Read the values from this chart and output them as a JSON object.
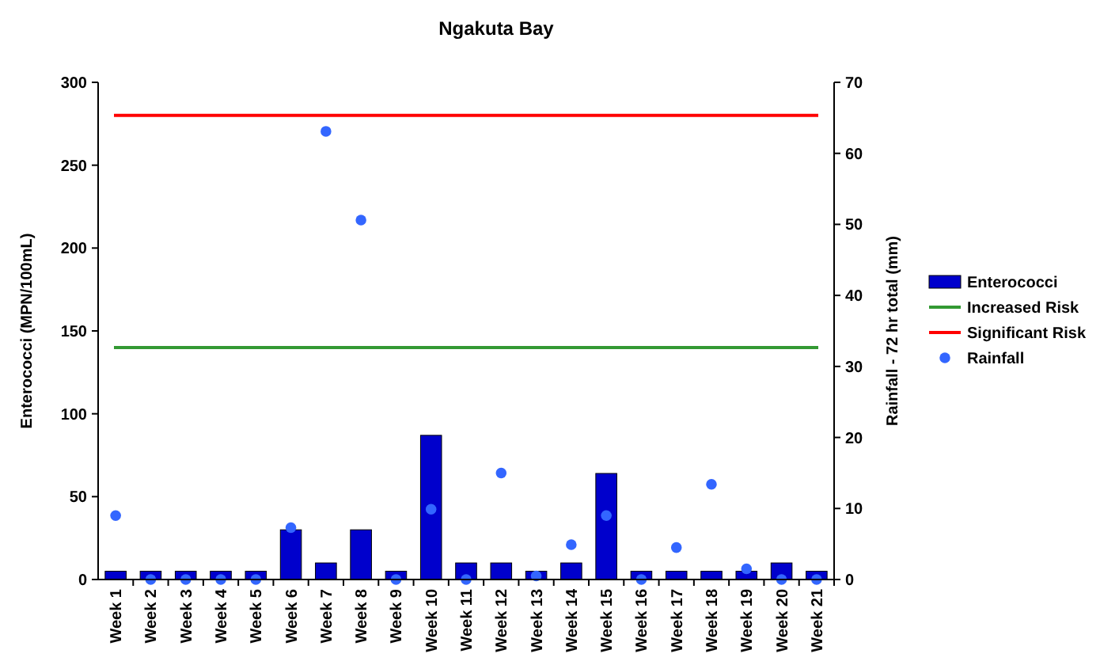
{
  "chart_data": {
    "type": "bar",
    "title": "Ngakuta Bay",
    "categories": [
      "Week 1",
      "Week 2",
      "Week 3",
      "Week 4",
      "Week 5",
      "Week 6",
      "Week 7",
      "Week 8",
      "Week 9",
      "Week 10",
      "Week 11",
      "Week 12",
      "Week 13",
      "Week 14",
      "Week 15",
      "Week 16",
      "Week 17",
      "Week 18",
      "Week 19",
      "Week 20",
      "Week 21"
    ],
    "series": [
      {
        "name": "Enterococci",
        "color": "#0000cc",
        "values": [
          5,
          5,
          5,
          5,
          5,
          30,
          10,
          30,
          5,
          87,
          10,
          10,
          5,
          10,
          64,
          5,
          5,
          5,
          5,
          10,
          5
        ]
      },
      {
        "name": "Rainfall",
        "type": "scatter",
        "axis": "y2",
        "color": "#3366ff",
        "values": [
          9,
          0,
          0,
          0,
          0,
          7.3,
          63.1,
          50.6,
          0,
          9.9,
          0,
          15,
          0.5,
          4.9,
          9,
          0,
          4.5,
          13.4,
          1.5,
          0,
          0
        ]
      }
    ],
    "ref_lines": [
      {
        "axis": "y",
        "value": 140,
        "label": "Increased Risk",
        "color": "#339933"
      },
      {
        "axis": "y",
        "value": 280,
        "label": "Significant Risk",
        "color": "#ff0000"
      }
    ],
    "ylabel": "Enterococci (MPN/100mL)",
    "y2label": "Rainfall - 72 hr total (mm)",
    "ylim": [
      0,
      300
    ],
    "yticks": [
      0,
      50,
      100,
      150,
      200,
      250,
      300
    ],
    "y2lim": [
      0,
      70
    ],
    "y2ticks": [
      0,
      10,
      20,
      30,
      40,
      50,
      60,
      70
    ],
    "legend": "right",
    "grid": false,
    "marker": "circle"
  }
}
